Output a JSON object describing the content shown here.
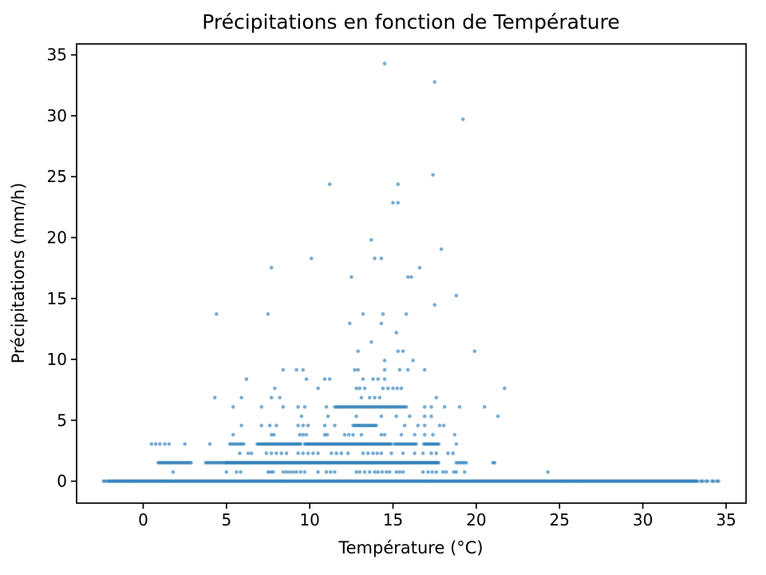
{
  "chart_data": {
    "type": "scatter",
    "title": "Précipitations en fonction de Température",
    "xlabel": "Température (°C)",
    "ylabel": "Précipitations (mm/h)",
    "xlim": [
      -4.0,
      36.2
    ],
    "ylim": [
      -1.8,
      35.9
    ],
    "x_ticks": [
      0,
      5,
      10,
      15,
      20,
      25,
      30,
      35
    ],
    "y_ticks": [
      0,
      5,
      10,
      15,
      20,
      25,
      30,
      35
    ],
    "grid": false,
    "legend": null,
    "marker_color": "#1f77b4",
    "marker_opacity": 0.6,
    "marker_radius": 2.3,
    "axis_color": "#000000",
    "points": [
      [
        -2.38,
        0
      ],
      [
        -2.3,
        0
      ],
      [
        33.5,
        0
      ],
      [
        33.6,
        0
      ],
      [
        33.8,
        0
      ],
      [
        33.9,
        0
      ],
      [
        34.15,
        0
      ],
      [
        34.25,
        0
      ],
      [
        34.45,
        0
      ],
      [
        34.55,
        0
      ],
      [
        1.8,
        0.76
      ],
      [
        5.0,
        0.76
      ],
      [
        5.6,
        0.76
      ],
      [
        5.85,
        0.76
      ],
      [
        7.5,
        0.76
      ],
      [
        7.65,
        0.76
      ],
      [
        7.8,
        0.76
      ],
      [
        8.4,
        0.76
      ],
      [
        8.6,
        0.76
      ],
      [
        8.8,
        0.76
      ],
      [
        9.0,
        0.76
      ],
      [
        9.2,
        0.76
      ],
      [
        9.45,
        0.76
      ],
      [
        9.7,
        0.76
      ],
      [
        10.5,
        0.76
      ],
      [
        11.0,
        0.76
      ],
      [
        11.25,
        0.76
      ],
      [
        11.5,
        0.76
      ],
      [
        12.8,
        0.76
      ],
      [
        13.0,
        0.76
      ],
      [
        13.3,
        0.76
      ],
      [
        13.6,
        0.76
      ],
      [
        13.9,
        0.76
      ],
      [
        14.1,
        0.76
      ],
      [
        14.35,
        0.76
      ],
      [
        14.6,
        0.76
      ],
      [
        14.8,
        0.76
      ],
      [
        15.2,
        0.76
      ],
      [
        15.4,
        0.76
      ],
      [
        15.6,
        0.76
      ],
      [
        16.8,
        0.76
      ],
      [
        17.1,
        0.76
      ],
      [
        17.35,
        0.76
      ],
      [
        17.6,
        0.76
      ],
      [
        18.0,
        0.76
      ],
      [
        18.2,
        0.76
      ],
      [
        18.65,
        0.76
      ],
      [
        18.8,
        0.76
      ],
      [
        19.3,
        0.76
      ],
      [
        24.3,
        0.76
      ],
      [
        21.0,
        1.52
      ],
      [
        21.1,
        1.52
      ],
      [
        5.8,
        2.29
      ],
      [
        6.3,
        2.29
      ],
      [
        6.5,
        2.29
      ],
      [
        7.4,
        2.29
      ],
      [
        7.7,
        2.29
      ],
      [
        8.0,
        2.29
      ],
      [
        8.3,
        2.29
      ],
      [
        8.6,
        2.29
      ],
      [
        9.3,
        2.29
      ],
      [
        9.6,
        2.29
      ],
      [
        9.9,
        2.29
      ],
      [
        10.2,
        2.29
      ],
      [
        10.5,
        2.29
      ],
      [
        11.3,
        2.29
      ],
      [
        11.6,
        2.29
      ],
      [
        11.9,
        2.29
      ],
      [
        12.3,
        2.29
      ],
      [
        13.2,
        2.29
      ],
      [
        13.5,
        2.29
      ],
      [
        13.8,
        2.29
      ],
      [
        14.05,
        2.29
      ],
      [
        14.3,
        2.29
      ],
      [
        14.9,
        2.29
      ],
      [
        15.6,
        2.29
      ],
      [
        16.3,
        2.29
      ],
      [
        16.8,
        2.29
      ],
      [
        17.3,
        2.29
      ],
      [
        17.6,
        2.29
      ],
      [
        18.3,
        2.29
      ],
      [
        18.6,
        2.29
      ],
      [
        0.5,
        3.05
      ],
      [
        0.75,
        3.05
      ],
      [
        1.0,
        3.05
      ],
      [
        1.3,
        3.05
      ],
      [
        1.55,
        3.05
      ],
      [
        2.5,
        3.05
      ],
      [
        4.0,
        3.05
      ],
      [
        18.8,
        3.05
      ],
      [
        5.4,
        3.81
      ],
      [
        7.7,
        3.81
      ],
      [
        7.85,
        3.81
      ],
      [
        9.4,
        3.81
      ],
      [
        9.6,
        3.81
      ],
      [
        9.8,
        3.81
      ],
      [
        10.9,
        3.81
      ],
      [
        11.05,
        3.81
      ],
      [
        12.1,
        3.81
      ],
      [
        12.35,
        3.81
      ],
      [
        12.6,
        3.81
      ],
      [
        13.1,
        3.81
      ],
      [
        14.3,
        3.81
      ],
      [
        14.5,
        3.81
      ],
      [
        15.5,
        3.81
      ],
      [
        16.3,
        3.81
      ],
      [
        16.9,
        3.81
      ],
      [
        17.4,
        3.81
      ],
      [
        18.7,
        3.81
      ],
      [
        5.9,
        4.57
      ],
      [
        7.1,
        4.57
      ],
      [
        7.6,
        4.57
      ],
      [
        8.0,
        4.57
      ],
      [
        9.3,
        4.57
      ],
      [
        9.6,
        4.57
      ],
      [
        9.9,
        4.57
      ],
      [
        10.9,
        4.57
      ],
      [
        11.5,
        4.57
      ],
      [
        15.7,
        4.57
      ],
      [
        16.5,
        4.57
      ],
      [
        16.9,
        4.57
      ],
      [
        17.8,
        4.57
      ],
      [
        18.05,
        4.57
      ],
      [
        9.5,
        5.33
      ],
      [
        11.1,
        5.33
      ],
      [
        12.8,
        5.33
      ],
      [
        14.3,
        5.33
      ],
      [
        15.2,
        5.33
      ],
      [
        16.0,
        5.33
      ],
      [
        16.9,
        5.33
      ],
      [
        17.3,
        5.33
      ],
      [
        21.3,
        5.33
      ],
      [
        5.4,
        6.1
      ],
      [
        7.1,
        6.1
      ],
      [
        8.4,
        6.1
      ],
      [
        9.3,
        6.1
      ],
      [
        9.7,
        6.1
      ],
      [
        11.0,
        6.1
      ],
      [
        16.9,
        6.1
      ],
      [
        17.3,
        6.1
      ],
      [
        18.1,
        6.1
      ],
      [
        19.0,
        6.1
      ],
      [
        20.5,
        6.1
      ],
      [
        4.3,
        6.86
      ],
      [
        5.9,
        6.86
      ],
      [
        7.7,
        6.86
      ],
      [
        8.2,
        6.86
      ],
      [
        13.1,
        6.86
      ],
      [
        13.6,
        6.86
      ],
      [
        13.9,
        6.86
      ],
      [
        14.2,
        6.86
      ],
      [
        17.6,
        6.86
      ],
      [
        7.9,
        7.62
      ],
      [
        10.5,
        7.62
      ],
      [
        12.8,
        7.62
      ],
      [
        13.0,
        7.62
      ],
      [
        13.3,
        7.62
      ],
      [
        14.4,
        7.62
      ],
      [
        14.7,
        7.62
      ],
      [
        15.0,
        7.62
      ],
      [
        15.25,
        7.62
      ],
      [
        15.5,
        7.62
      ],
      [
        21.7,
        7.62
      ],
      [
        6.2,
        8.38
      ],
      [
        9.8,
        8.38
      ],
      [
        10.9,
        8.38
      ],
      [
        11.2,
        8.38
      ],
      [
        13.2,
        8.38
      ],
      [
        13.8,
        8.38
      ],
      [
        14.1,
        8.38
      ],
      [
        14.5,
        8.38
      ],
      [
        8.4,
        9.14
      ],
      [
        9.2,
        9.14
      ],
      [
        9.6,
        9.14
      ],
      [
        12.7,
        9.14
      ],
      [
        12.9,
        9.14
      ],
      [
        14.5,
        9.14
      ],
      [
        15.4,
        9.14
      ],
      [
        15.9,
        9.14
      ],
      [
        16.9,
        9.14
      ],
      [
        14.5,
        9.91
      ],
      [
        16.2,
        9.91
      ],
      [
        12.9,
        10.67
      ],
      [
        15.3,
        10.67
      ],
      [
        15.6,
        10.67
      ],
      [
        19.9,
        10.67
      ],
      [
        13.7,
        11.43
      ],
      [
        15.2,
        12.19
      ],
      [
        12.4,
        12.95
      ],
      [
        14.3,
        12.95
      ],
      [
        4.4,
        13.72
      ],
      [
        7.5,
        13.72
      ],
      [
        13.2,
        13.72
      ],
      [
        14.4,
        13.72
      ],
      [
        15.8,
        13.72
      ],
      [
        17.5,
        14.48
      ],
      [
        18.8,
        15.24
      ],
      [
        12.5,
        16.76
      ],
      [
        15.9,
        16.76
      ],
      [
        16.1,
        16.76
      ],
      [
        7.7,
        17.53
      ],
      [
        16.6,
        17.53
      ],
      [
        10.1,
        18.29
      ],
      [
        13.9,
        18.29
      ],
      [
        14.3,
        18.29
      ],
      [
        17.9,
        19.05
      ],
      [
        13.7,
        19.81
      ],
      [
        15.0,
        22.86
      ],
      [
        15.3,
        22.86
      ],
      [
        11.2,
        24.38
      ],
      [
        15.3,
        24.38
      ],
      [
        17.4,
        25.15
      ],
      [
        19.2,
        29.72
      ],
      [
        17.5,
        32.77
      ],
      [
        14.5,
        34.29
      ]
    ],
    "band_segments": [
      {
        "y": 0,
        "from": -2.15,
        "to": 33.35,
        "step": 0.08
      },
      {
        "y": 1.52,
        "from": 0.9,
        "to": 2.95,
        "step": 0.09
      },
      {
        "y": 1.52,
        "from": 3.75,
        "to": 4.95,
        "step": 0.1
      },
      {
        "y": 1.52,
        "from": 5.0,
        "to": 17.75,
        "step": 0.07
      },
      {
        "y": 1.52,
        "from": 18.8,
        "to": 19.45,
        "step": 0.12
      },
      {
        "y": 3.05,
        "from": 5.2,
        "to": 6.05,
        "step": 0.12
      },
      {
        "y": 3.05,
        "from": 6.85,
        "to": 9.5,
        "step": 0.09
      },
      {
        "y": 3.05,
        "from": 9.7,
        "to": 14.9,
        "step": 0.08
      },
      {
        "y": 3.05,
        "from": 15.1,
        "to": 16.4,
        "step": 0.1
      },
      {
        "y": 3.05,
        "from": 16.85,
        "to": 17.8,
        "step": 0.09
      },
      {
        "y": 4.57,
        "from": 12.6,
        "to": 14.05,
        "step": 0.1
      },
      {
        "y": 6.1,
        "from": 11.5,
        "to": 15.8,
        "step": 0.1
      }
    ]
  }
}
